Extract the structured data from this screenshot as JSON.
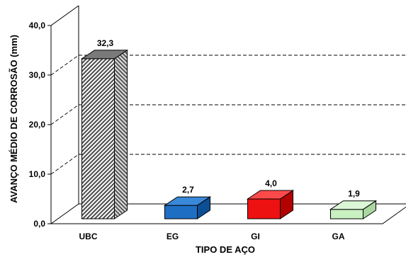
{
  "chart_data": {
    "type": "bar",
    "style": "3d",
    "xlabel": "TIPO DE AÇO",
    "ylabel": "AVANÇO MÉDIO DE CORROSÃO (mm)",
    "ylim": [
      0,
      40
    ],
    "yticks": [
      "0,0",
      "10,0",
      "20,0",
      "30,0",
      "40,0"
    ],
    "categories": [
      "UBC",
      "EG",
      "GI",
      "GA"
    ],
    "values": [
      32.3,
      2.7,
      4.0,
      1.9
    ],
    "value_labels": [
      "32,3",
      "2,7",
      "4,0",
      "1,9"
    ],
    "grid": true,
    "colors": [
      "#a0a0a0",
      "#1e6fc4",
      "#ee1111",
      "#c8f0c0"
    ],
    "patterns": [
      "diagonal-hatch",
      "solid",
      "solid",
      "solid"
    ]
  }
}
